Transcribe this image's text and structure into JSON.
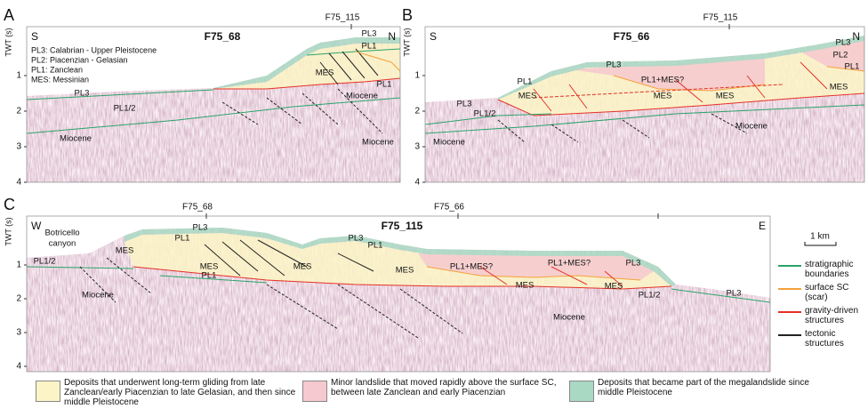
{
  "panels": [
    {
      "letter": "A",
      "title": "F75_68",
      "crossing": [
        "F75_115"
      ],
      "left": "S",
      "right": "N",
      "axis_label": "TWT (s)",
      "ticks": [
        1,
        2,
        3,
        4
      ],
      "key": [
        "PL3: Calabrian - Upper Pleistocene",
        "PL2: Piacenzian - Gelasian",
        "PL1: Zanclean",
        "MES: Messinian"
      ],
      "labels": [
        "PL3",
        "PL1",
        "MES",
        "PL1",
        "Miocene",
        "PL3",
        "PL1/2",
        "Miocene",
        "Miocene"
      ]
    },
    {
      "letter": "B",
      "title": "F75_66",
      "crossing": [
        "F75_115"
      ],
      "left": "S",
      "right": "N",
      "axis_label": "TWT (s)",
      "ticks": [
        1,
        2,
        3,
        4
      ],
      "labels": [
        "PL3",
        "PL2",
        "PL1",
        "PL3",
        "PL1",
        "PL1+MES?",
        "MES",
        "MES",
        "MES",
        "MES",
        "PL3",
        "PL1/2",
        "Miocene",
        "Miocene"
      ]
    },
    {
      "letter": "C",
      "title": "F75_115",
      "crossing": [
        "F75_68",
        "F75_66"
      ],
      "left": "W",
      "right": "E",
      "axis_label": "TWT (s)",
      "ticks": [
        1,
        2,
        3,
        4
      ],
      "labels": [
        "Botricello",
        "canyon",
        "PL1/2",
        "Miocene",
        "PL3",
        "PL1",
        "MES",
        "MES",
        "PL1",
        "PL3",
        "PL1",
        "MES",
        "MES",
        "PL1+MES?",
        "PL1+MES?",
        "PL3",
        "MES",
        "MES",
        "PL1/2",
        "PL3",
        "Miocene"
      ]
    }
  ],
  "legend": {
    "scale": "1 km",
    "items": [
      "stratigraphic boundaries",
      "surface SC (scar)",
      "gravity-driven structures",
      "tectonic structures"
    ]
  },
  "units": [
    "Deposits that underwent long-term gliding from late Zanclean/early Piacenzian to late Gelasian, and then since middle Pleistocene",
    "Minor landslide that moved rapidly above the surface SC, between late Zanclean and early Piacenzian",
    "Deposits that became part of the megalandslide since middle Pleistocene"
  ]
}
